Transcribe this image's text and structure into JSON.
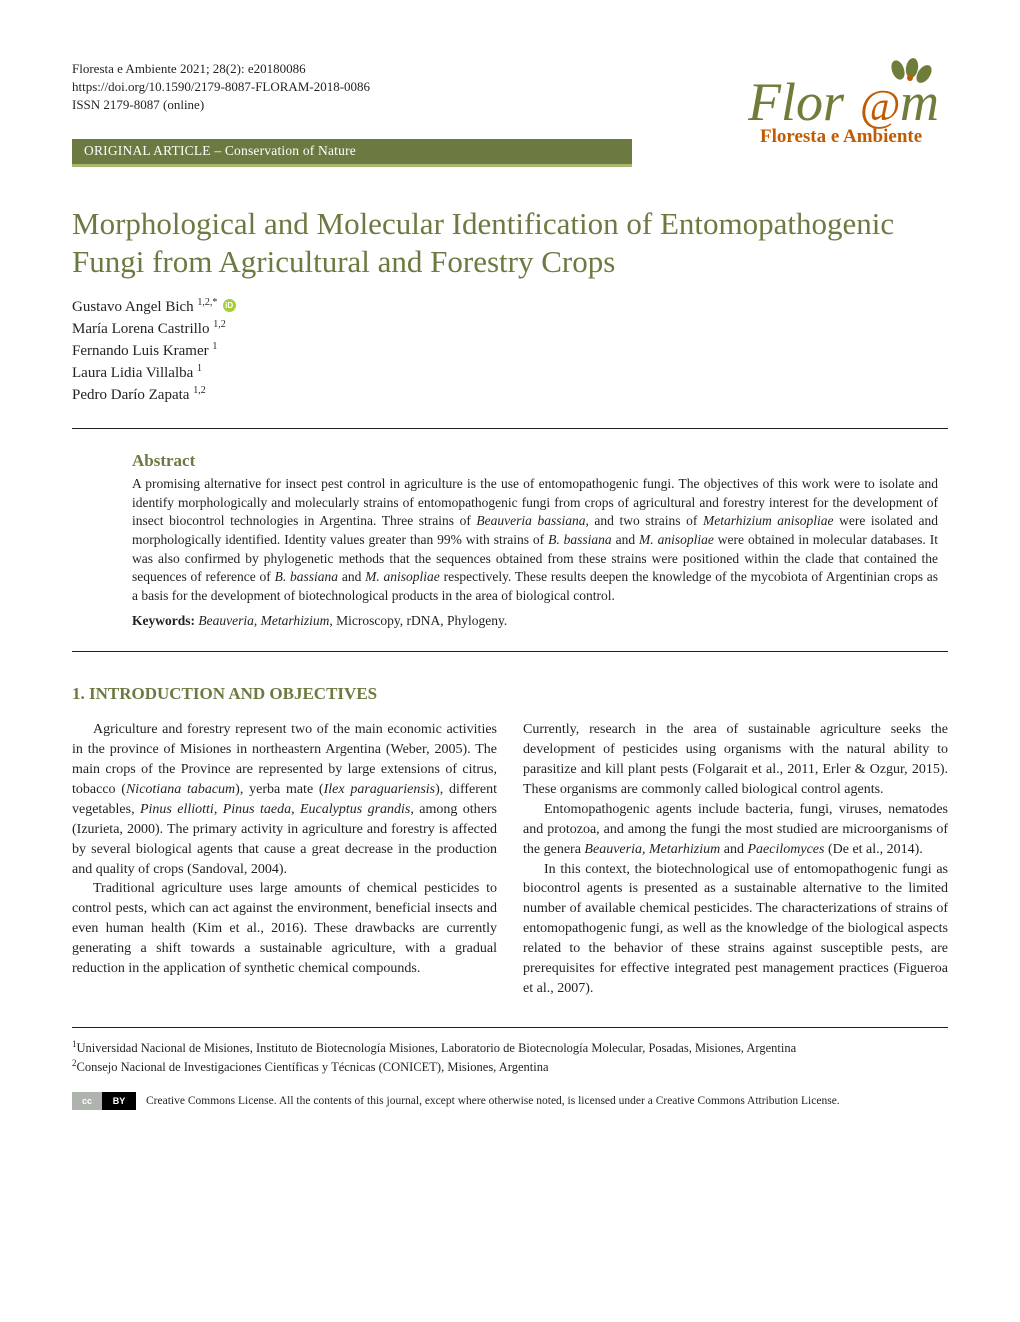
{
  "meta": {
    "citation": "Floresta e Ambiente 2021; 28(2): e20180086",
    "doi": "https://doi.org/10.1590/2179-8087-FLORAM-2018-0086",
    "issn": "ISSN 2179-8087 (online)"
  },
  "logo": {
    "script_text": "Flor@m",
    "subtitle": "Floresta e Ambiente",
    "leaf_color": "#6f7c3a",
    "accent_color": "#c15a00"
  },
  "band": {
    "label": "ORIGINAL ARTICLE – Conservation of Nature",
    "bg": "#6b7a40",
    "underline": "#a7b76f"
  },
  "title": "Morphological and Molecular Identification of Entomopathogenic Fungi from Agricultural and Forestry Crops",
  "authors": [
    {
      "name": "Gustavo Angel Bich",
      "sup": "1,2,*",
      "orcid": true
    },
    {
      "name": "María Lorena Castrillo",
      "sup": "1,2"
    },
    {
      "name": "Fernando Luis Kramer",
      "sup": "1"
    },
    {
      "name": "Laura Lidia Villalba",
      "sup": "1"
    },
    {
      "name": "Pedro Darío Zapata",
      "sup": "1,2"
    }
  ],
  "abstract": {
    "heading": "Abstract",
    "body_html": "A promising alternative for insect pest control in agriculture is the use of entomopathogenic fungi. The objectives of this work were to isolate and identify morphologically and molecularly strains of entomopathogenic fungi from crops of agricultural and forestry interest for the development of insect biocontrol technologies in Argentina. Three strains of <em>Beauveria bassiana</em>, and two strains of <em>Metarhizium anisopliae</em> were isolated and morphologically identified. Identity values greater than 99% with strains of <em>B. bassiana</em> and <em>M. anisopliae</em> were obtained in molecular databases. It was also confirmed by phylogenetic methods that the sequences obtained from these strains were positioned within the clade that contained the sequences of reference of <em>B. bassiana</em> and <em>M. anisopliae</em> respectively. These results deepen the knowledge of the mycobiota of Argentinian crops as a basis for the development of biotechnological products in the area of biological control.",
    "keywords_label": "Keywords:",
    "keywords_html": "<em>Beauveria</em>, <em>Metarhizium</em>, Microscopy, rDNA, Phylogeny."
  },
  "section": {
    "heading": "1. INTRODUCTION AND OBJECTIVES"
  },
  "body": {
    "left": [
      "Agriculture and forestry represent two of the main economic activities in the province of Misiones in northeastern Argentina (Weber, 2005). The main crops of the Province are represented by large extensions of citrus, tobacco (<em>Nicotiana tabacum</em>), yerba mate (<em>Ilex paraguariensis</em>), different vegetables, <em>Pinus elliotti</em>, <em>Pinus taeda</em>, <em>Eucalyptus grandis</em>, among others (Izurieta, 2000). The primary activity in agriculture and forestry is affected by several biological agents that cause a great decrease in the production and quality of crops (Sandoval, 2004).",
      "Traditional agriculture uses large amounts of chemical pesticides to control pests, which can act against the environment, beneficial insects and even human health (Kim et al., 2016). These drawbacks are currently generating a shift towards a sustainable agriculture, with a gradual reduction in the application of synthetic chemical compounds."
    ],
    "right": [
      "Currently, research in the area of sustainable agriculture seeks the development of pesticides using organisms with the natural ability to parasitize and kill plant pests (Folgarait et al., 2011, Erler & Ozgur, 2015). These organisms are commonly called biological control agents.",
      "Entomopathogenic agents include bacteria, fungi, viruses, nematodes and protozoa, and among the fungi the most studied are microorganisms of the genera <em>Beauveria</em>, <em>Metarhizium</em> and <em>Paecilomyces</em> (De et al., 2014).",
      "In this context, the biotechnological use of entomopathogenic fungi as biocontrol agents is presented as a sustainable alternative to the limited number of available chemical pesticides. The characterizations of strains of entomopathogenic fungi, as well as the knowledge of the biological aspects related to the behavior of these strains against susceptible pests, are prerequisites for effective integrated pest management practices (Figueroa et al., 2007)."
    ]
  },
  "affiliations": [
    {
      "num": "1",
      "text": "Universidad Nacional de Misiones, Instituto de Biotecnología Misiones, Laboratorio de Biotecnología Molecular, Posadas, Misiones, Argentina"
    },
    {
      "num": "2",
      "text": "Consejo Nacional de Investigaciones Científicas y Técnicas (CONICET), Misiones, Argentina"
    }
  ],
  "cc": {
    "badge_left": "cc",
    "badge_right": "BY",
    "text": "Creative Commons License. All the contents of this journal, except where otherwise noted, is licensed under a Creative Commons Attribution License."
  },
  "colors": {
    "brand_green": "#6b7a40",
    "text": "#231f20"
  }
}
